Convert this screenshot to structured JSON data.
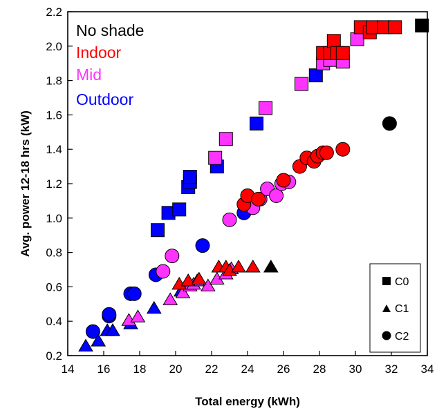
{
  "chart_data": {
    "type": "scatter",
    "xlabel": "Total energy (kWh)",
    "ylabel": "Avg. power  12-18 hrs (kW)",
    "xlim": [
      14,
      34
    ],
    "ylim": [
      0.2,
      2.2
    ],
    "xticks": [
      "14",
      "16",
      "18",
      "20",
      "22",
      "24",
      "26",
      "28",
      "30",
      "32",
      "34"
    ],
    "yticks": [
      "0.2",
      "0.4",
      "0.6",
      "0.8",
      "1.0",
      "1.2",
      "1.4",
      "1.6",
      "1.8",
      "2.0",
      "2.2"
    ],
    "grid": false,
    "color_legend": {
      "placement": "top-left",
      "entries": [
        {
          "label": "No shade",
          "color": "#000000"
        },
        {
          "label": "Indoor",
          "color": "#ff0000"
        },
        {
          "label": "Mid",
          "color": "#ff33ff"
        },
        {
          "label": "Outdoor",
          "color": "#0000ff"
        }
      ]
    },
    "shape_legend": {
      "placement": "bottom-right",
      "entries": [
        {
          "label": "C0",
          "marker": "square"
        },
        {
          "label": "C1",
          "marker": "triangle"
        },
        {
          "label": "C2",
          "marker": "circle"
        }
      ]
    },
    "series": [
      {
        "group": "Outdoor",
        "color": "#0000ff",
        "marker": "square",
        "points": [
          [
            19.0,
            0.93
          ],
          [
            19.6,
            1.03
          ],
          [
            20.2,
            1.05
          ],
          [
            20.7,
            1.18
          ],
          [
            20.8,
            1.21
          ],
          [
            20.8,
            1.24
          ],
          [
            22.3,
            1.3
          ],
          [
            24.5,
            1.55
          ],
          [
            27.8,
            1.83
          ]
        ]
      },
      {
        "group": "Mid",
        "color": "#ff33ff",
        "marker": "square",
        "points": [
          [
            22.2,
            1.35
          ],
          [
            22.8,
            1.46
          ],
          [
            25.0,
            1.64
          ],
          [
            27.0,
            1.78
          ],
          [
            28.2,
            1.9
          ],
          [
            28.6,
            1.92
          ],
          [
            29.3,
            1.91
          ],
          [
            30.1,
            2.04
          ]
        ]
      },
      {
        "group": "Indoor",
        "color": "#ff0000",
        "marker": "square",
        "points": [
          [
            28.2,
            1.96
          ],
          [
            28.6,
            1.96
          ],
          [
            28.8,
            2.03
          ],
          [
            29.0,
            1.96
          ],
          [
            29.3,
            1.96
          ],
          [
            30.3,
            2.11
          ],
          [
            30.8,
            2.08
          ],
          [
            31.0,
            2.11
          ],
          [
            31.6,
            2.11
          ],
          [
            32.2,
            2.11
          ]
        ]
      },
      {
        "group": "No shade",
        "color": "#000000",
        "marker": "square",
        "points": [
          [
            33.7,
            2.12
          ]
        ]
      },
      {
        "group": "Outdoor",
        "color": "#0000ff",
        "marker": "circle",
        "points": [
          [
            15.4,
            0.34
          ],
          [
            16.3,
            0.43
          ],
          [
            16.3,
            0.44
          ],
          [
            17.5,
            0.56
          ],
          [
            17.7,
            0.56
          ],
          [
            18.9,
            0.67
          ],
          [
            21.5,
            0.84
          ],
          [
            23.8,
            1.03
          ]
        ]
      },
      {
        "group": "Mid",
        "color": "#ff33ff",
        "marker": "circle",
        "points": [
          [
            19.3,
            0.69
          ],
          [
            19.8,
            0.78
          ],
          [
            23.0,
            0.99
          ],
          [
            24.3,
            1.06
          ],
          [
            24.7,
            1.11
          ],
          [
            25.1,
            1.17
          ],
          [
            25.6,
            1.13
          ],
          [
            25.9,
            1.2
          ],
          [
            26.3,
            1.21
          ]
        ]
      },
      {
        "group": "Indoor",
        "color": "#ff0000",
        "marker": "circle",
        "points": [
          [
            23.8,
            1.08
          ],
          [
            24.0,
            1.13
          ],
          [
            24.6,
            1.11
          ],
          [
            26.0,
            1.22
          ],
          [
            26.9,
            1.3
          ],
          [
            27.3,
            1.35
          ],
          [
            27.7,
            1.33
          ],
          [
            27.9,
            1.36
          ],
          [
            28.2,
            1.38
          ],
          [
            28.4,
            1.38
          ],
          [
            29.3,
            1.4
          ]
        ]
      },
      {
        "group": "No shade",
        "color": "#000000",
        "marker": "circle",
        "points": [
          [
            31.9,
            1.55
          ]
        ]
      },
      {
        "group": "Outdoor",
        "color": "#0000ff",
        "marker": "triangle",
        "points": [
          [
            15.0,
            0.26
          ],
          [
            15.7,
            0.29
          ],
          [
            16.2,
            0.35
          ],
          [
            16.5,
            0.35
          ],
          [
            17.5,
            0.39
          ],
          [
            18.8,
            0.48
          ],
          [
            20.3,
            0.58
          ]
        ]
      },
      {
        "group": "Mid",
        "color": "#ff33ff",
        "marker": "triangle",
        "points": [
          [
            17.4,
            0.41
          ],
          [
            17.9,
            0.43
          ],
          [
            19.7,
            0.53
          ],
          [
            20.4,
            0.57
          ],
          [
            20.8,
            0.61
          ],
          [
            21.0,
            0.62
          ],
          [
            21.2,
            0.64
          ],
          [
            21.8,
            0.61
          ],
          [
            22.3,
            0.65
          ],
          [
            22.8,
            0.68
          ],
          [
            23.1,
            0.71
          ]
        ]
      },
      {
        "group": "Indoor",
        "color": "#ff0000",
        "marker": "triangle",
        "points": [
          [
            20.2,
            0.62
          ],
          [
            20.7,
            0.64
          ],
          [
            21.3,
            0.65
          ],
          [
            22.4,
            0.72
          ],
          [
            22.8,
            0.72
          ],
          [
            23.0,
            0.7
          ],
          [
            23.5,
            0.72
          ],
          [
            24.3,
            0.72
          ]
        ]
      },
      {
        "group": "No shade",
        "color": "#000000",
        "marker": "triangle",
        "points": [
          [
            25.3,
            0.72
          ]
        ]
      }
    ]
  }
}
